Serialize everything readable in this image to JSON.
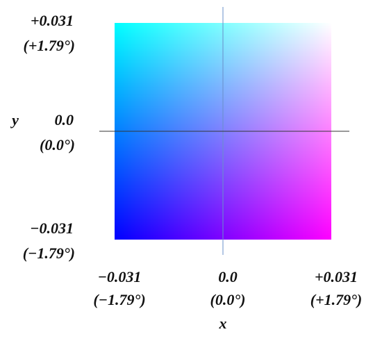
{
  "chart_data": {
    "type": "colormap",
    "x_label": "x",
    "y_label": "y",
    "xlim": [
      -0.031,
      0.031
    ],
    "ylim": [
      -0.031,
      0.031
    ],
    "xticks": [
      {
        "value": -0.031,
        "label": "−0.031"
      },
      {
        "value": 0,
        "label": "0.0"
      },
      {
        "value": 0.031,
        "label": "+0.031"
      }
    ],
    "xtick_degree_labels": [
      "(−1.79°)",
      "(0.0°)",
      "(+1.79°)"
    ],
    "yticks": [
      {
        "value": 0.031,
        "label": "+0.031"
      },
      {
        "value": 0,
        "label": "0.0"
      },
      {
        "value": -0.031,
        "label": "−0.031"
      }
    ],
    "ytick_degree_labels": [
      "(+1.79°)",
      "(0.0°)",
      "(−1.79°)"
    ],
    "x_gradient": [
      "#0000ff",
      "#ff00ff"
    ],
    "y_gradient": [
      "#000000",
      "#00ff00"
    ]
  }
}
